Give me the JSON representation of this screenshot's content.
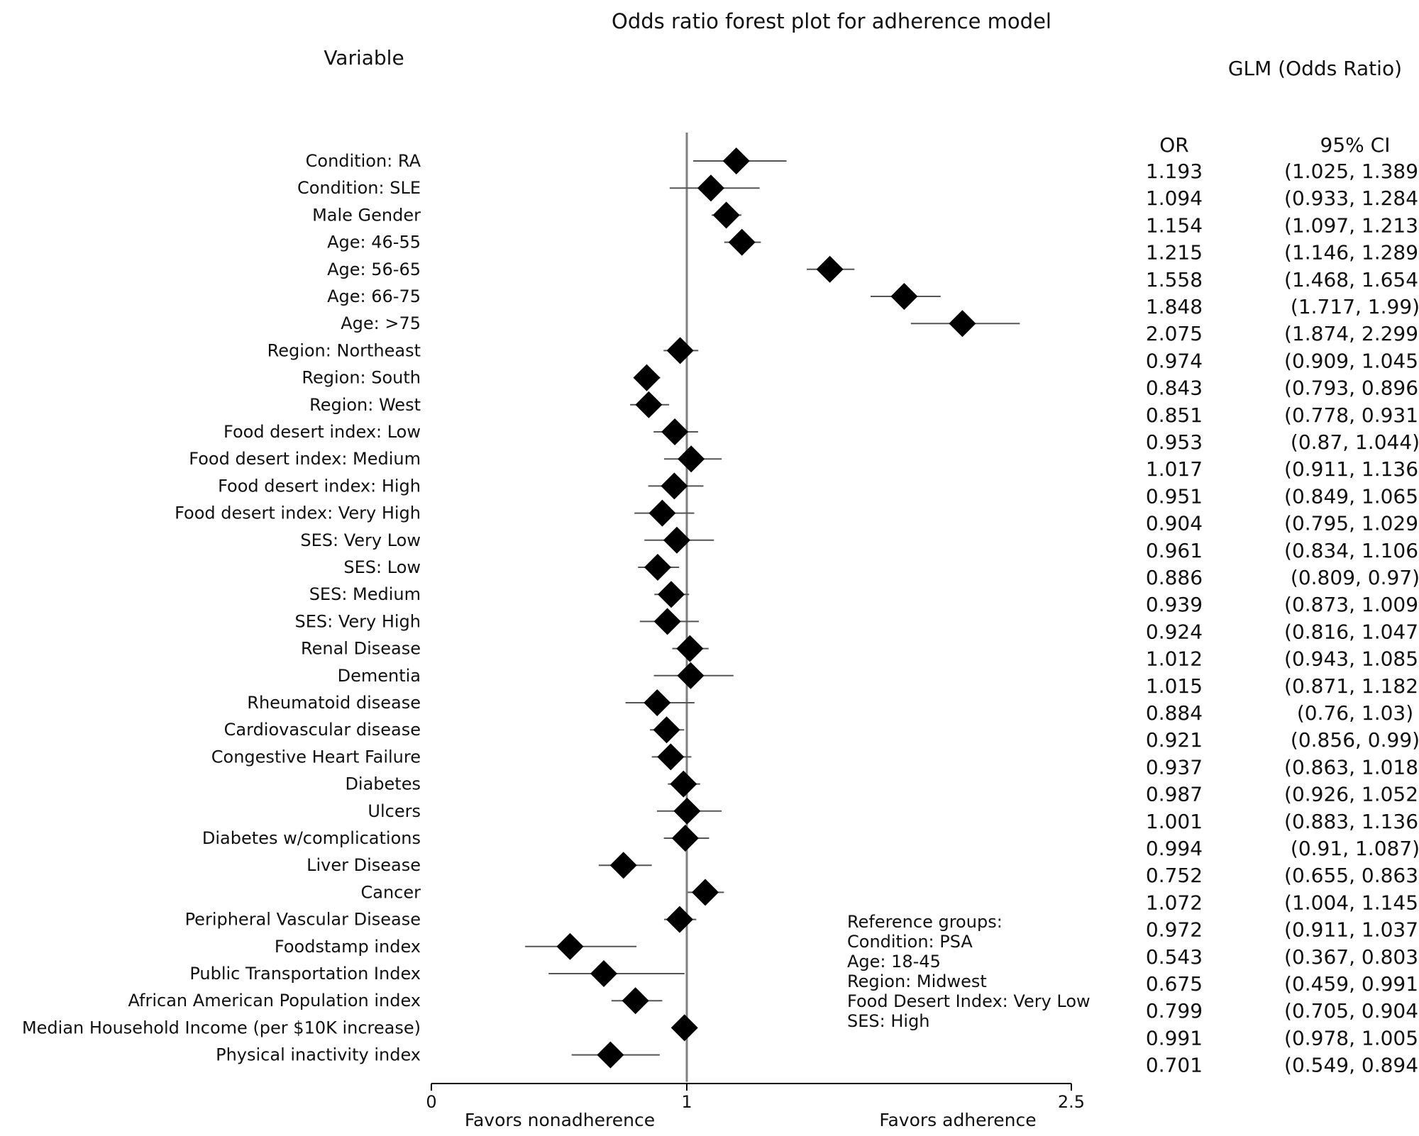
{
  "chart_data": {
    "type": "forest",
    "title": "Odds ratio forest plot for adherence model",
    "variable_header": "Variable",
    "glm_header": "GLM (Odds Ratio)",
    "or_col_header": "OR",
    "ci_col_header": "95% CI",
    "xlim": [
      0,
      2.5
    ],
    "reference_line": 1,
    "ticks": [
      {
        "value": 0,
        "label": "0"
      },
      {
        "value": 1,
        "label": "1"
      },
      {
        "value": 2.5,
        "label": "2.5"
      }
    ],
    "xlabel_left": "Favors nonadherence",
    "xlabel_right": "Favors adherence",
    "reference_groups": [
      "Reference groups:",
      "Condition: PSA",
      "Age: 18-45",
      "Region: Midwest",
      "Food Desert Index: Very Low",
      "SES: High"
    ],
    "rows": [
      {
        "variable": "Condition: RA",
        "or": 1.193,
        "lo": 1.025,
        "hi": 1.389,
        "or_text": "1.193",
        "ci_text": "(1.025, 1.389)"
      },
      {
        "variable": "Condition: SLE",
        "or": 1.094,
        "lo": 0.933,
        "hi": 1.284,
        "or_text": "1.094",
        "ci_text": "(0.933, 1.284)"
      },
      {
        "variable": "Male Gender",
        "or": 1.154,
        "lo": 1.097,
        "hi": 1.213,
        "or_text": "1.154",
        "ci_text": "(1.097, 1.213)"
      },
      {
        "variable": "Age: 46-55",
        "or": 1.215,
        "lo": 1.146,
        "hi": 1.289,
        "or_text": "1.215",
        "ci_text": "(1.146, 1.289)"
      },
      {
        "variable": "Age: 56-65",
        "or": 1.558,
        "lo": 1.468,
        "hi": 1.654,
        "or_text": "1.558",
        "ci_text": "(1.468, 1.654)"
      },
      {
        "variable": "Age: 66-75",
        "or": 1.848,
        "lo": 1.717,
        "hi": 1.99,
        "or_text": "1.848",
        "ci_text": "(1.717, 1.99)"
      },
      {
        "variable": "Age: >75",
        "or": 2.075,
        "lo": 1.874,
        "hi": 2.299,
        "or_text": "2.075",
        "ci_text": "(1.874, 2.299)"
      },
      {
        "variable": "Region: Northeast",
        "or": 0.974,
        "lo": 0.909,
        "hi": 1.045,
        "or_text": "0.974",
        "ci_text": "(0.909, 1.045)"
      },
      {
        "variable": "Region: South",
        "or": 0.843,
        "lo": 0.793,
        "hi": 0.896,
        "or_text": "0.843",
        "ci_text": "(0.793, 0.896)"
      },
      {
        "variable": "Region: West",
        "or": 0.851,
        "lo": 0.778,
        "hi": 0.931,
        "or_text": "0.851",
        "ci_text": "(0.778, 0.931)"
      },
      {
        "variable": "Food desert index: Low",
        "or": 0.953,
        "lo": 0.87,
        "hi": 1.044,
        "or_text": "0.953",
        "ci_text": "(0.87, 1.044)"
      },
      {
        "variable": "Food desert index: Medium",
        "or": 1.017,
        "lo": 0.911,
        "hi": 1.136,
        "or_text": "1.017",
        "ci_text": "(0.911, 1.136)"
      },
      {
        "variable": "Food desert index: High",
        "or": 0.951,
        "lo": 0.849,
        "hi": 1.065,
        "or_text": "0.951",
        "ci_text": "(0.849, 1.065)"
      },
      {
        "variable": "Food desert index: Very High",
        "or": 0.904,
        "lo": 0.795,
        "hi": 1.029,
        "or_text": "0.904",
        "ci_text": "(0.795, 1.029)"
      },
      {
        "variable": "SES: Very Low",
        "or": 0.961,
        "lo": 0.834,
        "hi": 1.106,
        "or_text": "0.961",
        "ci_text": "(0.834, 1.106)"
      },
      {
        "variable": "SES: Low",
        "or": 0.886,
        "lo": 0.809,
        "hi": 0.97,
        "or_text": "0.886",
        "ci_text": "(0.809, 0.97)"
      },
      {
        "variable": "SES: Medium",
        "or": 0.939,
        "lo": 0.873,
        "hi": 1.009,
        "or_text": "0.939",
        "ci_text": "(0.873, 1.009)"
      },
      {
        "variable": "SES: Very High",
        "or": 0.924,
        "lo": 0.816,
        "hi": 1.047,
        "or_text": "0.924",
        "ci_text": "(0.816, 1.047)"
      },
      {
        "variable": "Renal Disease",
        "or": 1.012,
        "lo": 0.943,
        "hi": 1.085,
        "or_text": "1.012",
        "ci_text": "(0.943, 1.085)"
      },
      {
        "variable": "Dementia",
        "or": 1.015,
        "lo": 0.871,
        "hi": 1.182,
        "or_text": "1.015",
        "ci_text": "(0.871, 1.182)"
      },
      {
        "variable": "Rheumatoid disease",
        "or": 0.884,
        "lo": 0.76,
        "hi": 1.03,
        "or_text": "0.884",
        "ci_text": "(0.76, 1.03)"
      },
      {
        "variable": "Cardiovascular disease",
        "or": 0.921,
        "lo": 0.856,
        "hi": 0.99,
        "or_text": "0.921",
        "ci_text": "(0.856, 0.99)"
      },
      {
        "variable": "Congestive Heart Failure",
        "or": 0.937,
        "lo": 0.863,
        "hi": 1.018,
        "or_text": "0.937",
        "ci_text": "(0.863, 1.018)"
      },
      {
        "variable": "Diabetes",
        "or": 0.987,
        "lo": 0.926,
        "hi": 1.052,
        "or_text": "0.987",
        "ci_text": "(0.926, 1.052)"
      },
      {
        "variable": "Ulcers",
        "or": 1.001,
        "lo": 0.883,
        "hi": 1.136,
        "or_text": "1.001",
        "ci_text": "(0.883, 1.136)"
      },
      {
        "variable": "Diabetes w/complications",
        "or": 0.994,
        "lo": 0.91,
        "hi": 1.087,
        "or_text": "0.994",
        "ci_text": "(0.91, 1.087)"
      },
      {
        "variable": "Liver Disease",
        "or": 0.752,
        "lo": 0.655,
        "hi": 0.863,
        "or_text": "0.752",
        "ci_text": "(0.655, 0.863)"
      },
      {
        "variable": "Cancer",
        "or": 1.072,
        "lo": 1.004,
        "hi": 1.145,
        "or_text": "1.072",
        "ci_text": "(1.004, 1.145)"
      },
      {
        "variable": "Peripheral Vascular Disease",
        "or": 0.972,
        "lo": 0.911,
        "hi": 1.037,
        "or_text": "0.972",
        "ci_text": "(0.911, 1.037)"
      },
      {
        "variable": "Foodstamp index",
        "or": 0.543,
        "lo": 0.367,
        "hi": 0.803,
        "or_text": "0.543",
        "ci_text": "(0.367, 0.803)"
      },
      {
        "variable": "Public Transportation Index",
        "or": 0.675,
        "lo": 0.459,
        "hi": 0.991,
        "or_text": "0.675",
        "ci_text": "(0.459, 0.991)"
      },
      {
        "variable": "African American Population index",
        "or": 0.799,
        "lo": 0.705,
        "hi": 0.904,
        "or_text": "0.799",
        "ci_text": "(0.705, 0.904)"
      },
      {
        "variable": "Median Household Income (per $10K increase)",
        "or": 0.991,
        "lo": 0.978,
        "hi": 1.005,
        "or_text": "0.991",
        "ci_text": "(0.978, 1.005)"
      },
      {
        "variable": "Physical inactivity index",
        "or": 0.701,
        "lo": 0.549,
        "hi": 0.894,
        "or_text": "0.701",
        "ci_text": "(0.549, 0.894)"
      }
    ]
  }
}
